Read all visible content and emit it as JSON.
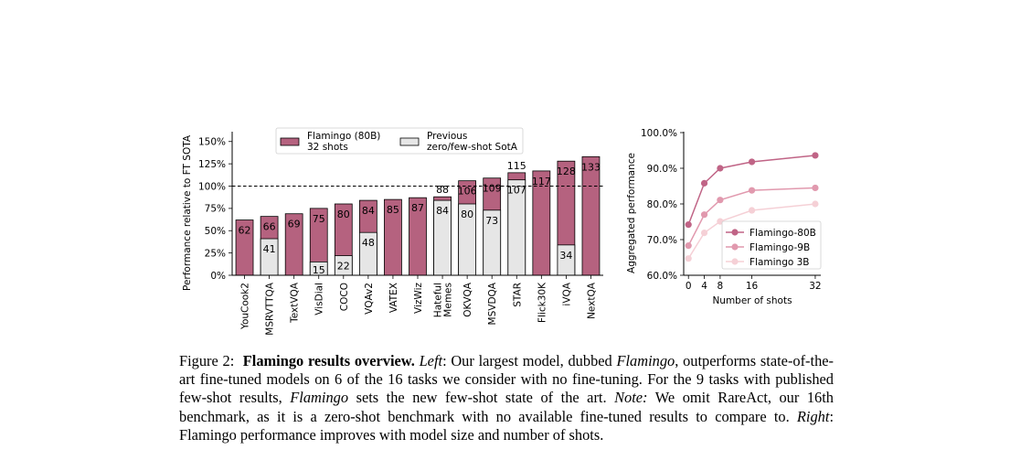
{
  "chart_data": [
    {
      "type": "bar",
      "ylabel": "Performance relative to FT SOTA",
      "ylim": [
        0,
        160
      ],
      "yticks": [
        0,
        25,
        50,
        75,
        100,
        125,
        150
      ],
      "ytick_suffix": "%",
      "reference_line": 100,
      "categories": [
        [
          "YouCook2"
        ],
        [
          "MSRVTTQA"
        ],
        [
          "TextVQA"
        ],
        [
          "VisDial"
        ],
        [
          "COCO"
        ],
        [
          "VQAv2"
        ],
        [
          "VATEX"
        ],
        [
          "VizWiz"
        ],
        [
          "Hateful",
          "Memes"
        ],
        [
          "OKVQA"
        ],
        [
          "MSVDQA"
        ],
        [
          "STAR"
        ],
        [
          "Flick30K"
        ],
        [
          "iVQA"
        ],
        [
          "NextQA"
        ]
      ],
      "series": [
        {
          "name": "Flamingo (80B)\n32 shots",
          "values": [
            62,
            66,
            69,
            75,
            80,
            84,
            85,
            87,
            88,
            106,
            109,
            115,
            117,
            128,
            133
          ],
          "color": "#b5627f"
        },
        {
          "name": "Previous\nzero/few-shot SotA",
          "values": [
            null,
            41,
            null,
            15,
            22,
            48,
            null,
            null,
            84,
            80,
            73,
            107,
            null,
            34,
            null
          ],
          "color": "#e6e6e6"
        }
      ],
      "legend_position": "top"
    },
    {
      "type": "line",
      "xlabel": "Number of shots",
      "ylabel": "Aggregated performance",
      "x": [
        0,
        4,
        8,
        16,
        32
      ],
      "ylim": [
        60,
        100
      ],
      "yticks": [
        60,
        70,
        80,
        90,
        100
      ],
      "ytick_suffix": "%",
      "series": [
        {
          "name": "Flamingo-80B",
          "values": [
            74.2,
            85.8,
            90.0,
            91.8,
            93.6
          ],
          "color": "#c06486"
        },
        {
          "name": "Flamingo-9B",
          "values": [
            68.3,
            77.0,
            81.1,
            83.8,
            84.5
          ],
          "color": "#e199ae"
        },
        {
          "name": "Flamingo 3B",
          "values": [
            64.7,
            71.9,
            75.1,
            78.2,
            80.0
          ],
          "color": "#f5d0d6"
        }
      ],
      "legend_position": "bottom-right"
    }
  ],
  "caption": {
    "label": "Figure 2:",
    "title": "Flamingo results overview.",
    "left_label": "Left",
    "text1": ": Our largest model, dubbed ",
    "model_name": "Flamingo",
    "text2": ", outperforms state-of-the-art fine-tuned models on 6 of the 16 tasks we consider with no fine-tuning. For the 9 tasks with published few-shot results, ",
    "model_name2": "Flamingo",
    "text3": " sets the new few-shot state of the art. ",
    "note_label": "Note:",
    "text4": " We omit RareAct, our 16th benchmark, as it is a zero-shot benchmark with no available fine-tuned results to compare to. ",
    "right_label": "Right",
    "text5": ": Flamingo performance improves with model size and number of shots."
  }
}
